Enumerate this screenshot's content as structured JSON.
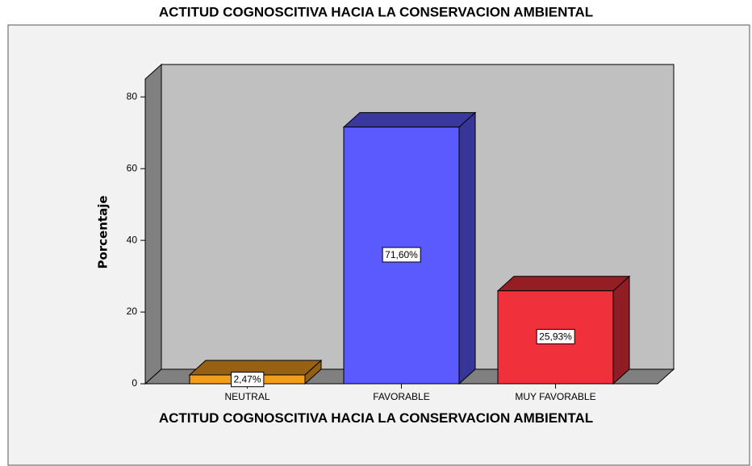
{
  "chart_data": {
    "type": "bar3d",
    "title": "ACTITUD COGNOSCITIVA HACIA LA CONSERVACION AMBIENTAL",
    "x_label": "ACTITUD COGNOSCITIVA HACIA LA CONSERVACION AMBIENTAL",
    "y_label": "Porcentaje",
    "categories": [
      "NEUTRAL",
      "FAVORABLE",
      "MUY FAVORABLE"
    ],
    "values": [
      2.47,
      71.6,
      25.93
    ],
    "value_labels": [
      "2,47%",
      "71,60%",
      "25,93%"
    ],
    "colors": [
      "#f39c1e",
      "#5a5aff",
      "#f0303a"
    ],
    "ylim": [
      0,
      85
    ],
    "yticks": [
      0,
      20,
      40,
      60,
      80
    ]
  }
}
